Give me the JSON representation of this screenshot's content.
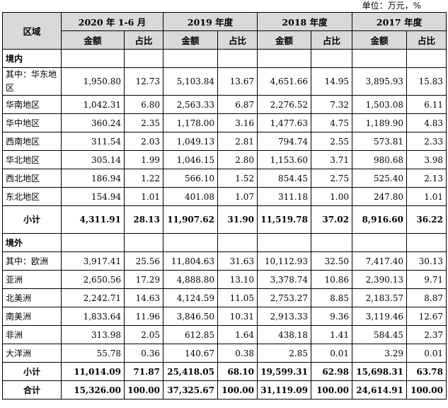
{
  "unit_note": "单位：万元，%",
  "headers": {
    "region": "区域",
    "periods": [
      "2020 年 1-6 月",
      "2019 年度",
      "2018 年度",
      "2017 年度"
    ],
    "amount": "金额",
    "share": "占比"
  },
  "domestic": {
    "label": "境内",
    "rows": [
      {
        "name": "其中：华东地区",
        "values": [
          "1,950.80",
          "12.73",
          "5,103.84",
          "13.67",
          "4,651.66",
          "14.95",
          "3,895.93",
          "15.83"
        ]
      },
      {
        "name": "华南地区",
        "values": [
          "1,042.31",
          "6.80",
          "2,563.33",
          "6.87",
          "2,276.52",
          "7.32",
          "1,503.08",
          "6.11"
        ]
      },
      {
        "name": "华中地区",
        "values": [
          "360.24",
          "2.35",
          "1,178.00",
          "3.16",
          "1,477.63",
          "4.75",
          "1,189.90",
          "4.83"
        ]
      },
      {
        "name": "西南地区",
        "values": [
          "311.54",
          "2.03",
          "1,049.13",
          "2.81",
          "794.74",
          "2.55",
          "573.81",
          "2.33"
        ]
      },
      {
        "name": "华北地区",
        "values": [
          "305.14",
          "1.99",
          "1,046.15",
          "2.80",
          "1,153.60",
          "3.71",
          "980.68",
          "3.98"
        ]
      },
      {
        "name": "西北地区",
        "values": [
          "186.94",
          "1.22",
          "566.10",
          "1.52",
          "854.45",
          "2.75",
          "525.40",
          "2.13"
        ]
      },
      {
        "name": "东北地区",
        "values": [
          "154.94",
          "1.01",
          "401.08",
          "1.07",
          "311.18",
          "1.00",
          "247.80",
          "1.01"
        ]
      }
    ],
    "subtotal": {
      "name": "小计",
      "values": [
        "4,311.91",
        "28.13",
        "11,907.62",
        "31.90",
        "11,519.78",
        "37.02",
        "8,916.60",
        "36.22"
      ]
    }
  },
  "overseas": {
    "label": "境外",
    "rows": [
      {
        "name": "其中：欧洲",
        "values": [
          "3,917.41",
          "25.56",
          "11,804.63",
          "31.63",
          "10,112.93",
          "32.50",
          "7,417.40",
          "30.13"
        ]
      },
      {
        "name": "亚洲",
        "values": [
          "2,650.56",
          "17.29",
          "4,888.80",
          "13.10",
          "3,378.74",
          "10.86",
          "2,390.13",
          "9.71"
        ]
      },
      {
        "name": "北美洲",
        "values": [
          "2,242.71",
          "14.63",
          "4,124.59",
          "11.05",
          "2,753.27",
          "8.85",
          "2,183.57",
          "8.87"
        ]
      },
      {
        "name": "南美洲",
        "values": [
          "1,833.64",
          "11.96",
          "3,846.50",
          "10.31",
          "2,913.33",
          "9.36",
          "3,119.46",
          "12.67"
        ]
      },
      {
        "name": "非洲",
        "values": [
          "313.98",
          "2.05",
          "612.85",
          "1.64",
          "438.18",
          "1.41",
          "584.45",
          "2.37"
        ]
      },
      {
        "name": "大洋洲",
        "values": [
          "55.78",
          "0.36",
          "140.67",
          "0.38",
          "2.85",
          "0.01",
          "3.29",
          "0.01"
        ]
      }
    ],
    "subtotal": {
      "name": "小计",
      "values": [
        "11,014.09",
        "71.87",
        "25,418.05",
        "68.10",
        "19,599.31",
        "62.98",
        "15,698.31",
        "63.78"
      ]
    }
  },
  "total": {
    "name": "合计",
    "values": [
      "15,326.00",
      "100.00",
      "37,325.67",
      "100.00",
      "31,119.09",
      "100.00",
      "24,614.91",
      "100.00"
    ]
  }
}
